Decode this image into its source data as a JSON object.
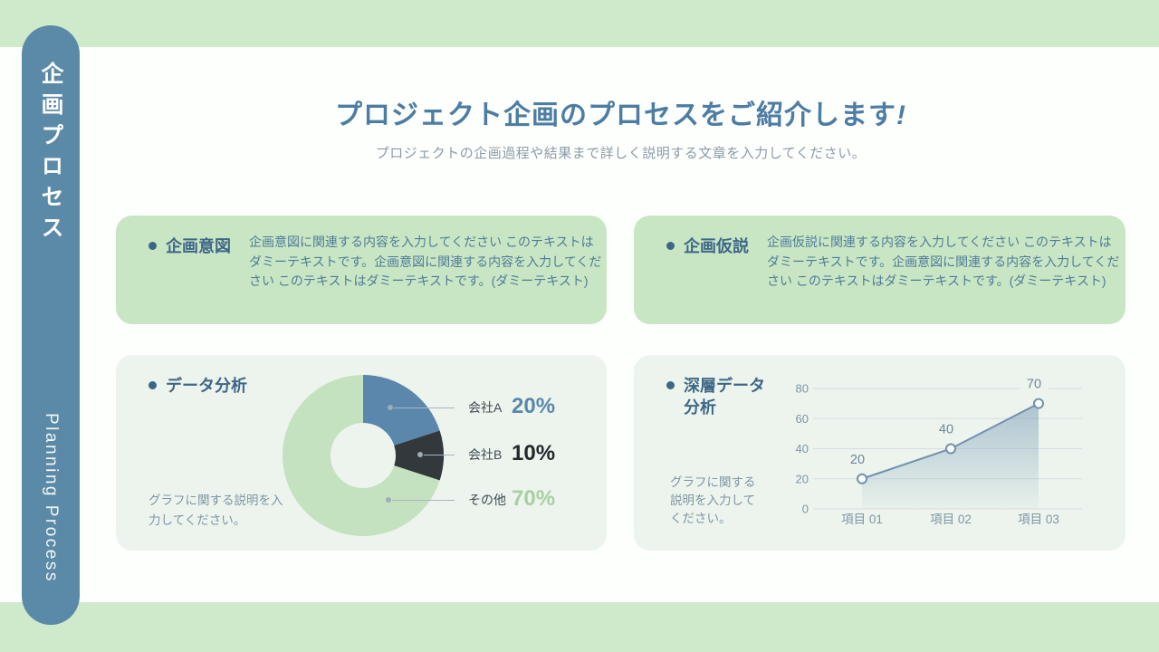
{
  "slide": {
    "title_main": "プロジェクト企画のプロセスをご紹介します",
    "title_exclamation": "!",
    "subtitle": "プロジェクトの企画過程や結果まで詳しく説明する文章を入力してください。"
  },
  "sidebar": {
    "vertical_title_jp": "企画プロセス",
    "vertical_title_en": "Planning Process"
  },
  "cards": {
    "intent": {
      "heading": "企画意図",
      "body": "企画意図に関連する内容を入力してください このテキストはダミーテキストです。企画意図に関連する内容を入力してください このテキストはダミーテキストです。(ダミーテキスト)"
    },
    "hypothesis": {
      "heading": "企画仮説",
      "body": "企画仮説に関連する内容を入力してください このテキストはダミーテキストです。企画意図に関連する内容を入力してください このテキストはダミーテキストです。(ダミーテキスト)"
    },
    "data_analysis": {
      "heading": "データ分析",
      "caption": "グラフに関する説明を入力してください。"
    },
    "deep_analysis": {
      "heading": "深層データ分析",
      "caption": "グラフに関する説明を入力してください。"
    }
  },
  "chart_data": [
    {
      "type": "pie",
      "subtype": "donut",
      "title": "データ分析",
      "slices": [
        {
          "label": "会社A",
          "value": 20,
          "display": "20%",
          "color": "#5a87ab",
          "value_color": "#5a87ab"
        },
        {
          "label": "会社B",
          "value": 10,
          "display": "10%",
          "color": "#33383c",
          "value_color": "#23282c"
        },
        {
          "label": "その他",
          "value": 70,
          "display": "70%",
          "color": "#c5e2c0",
          "value_color": "#a9cfa2"
        }
      ],
      "start_angle_deg": 0,
      "direction": "clockwise",
      "legend_position": "right"
    },
    {
      "type": "area",
      "title": "深層データ分析",
      "categories": [
        "項目 01",
        "項目 02",
        "項目 03"
      ],
      "values": [
        20,
        40,
        70
      ],
      "data_labels": [
        "20",
        "40",
        "70"
      ],
      "yticks": [
        0,
        20,
        40,
        60,
        80
      ],
      "ylim": [
        0,
        80
      ],
      "grid": true,
      "line_color": "#7191ae",
      "fill_color": "#7b9cb8",
      "marker": "open-circle",
      "axis_label_color": "#7f95a5",
      "data_label_color": "#6f8799"
    }
  ],
  "palette": {
    "band_green": "#cfe9cb",
    "sidebar_blue": "#5b8aa8",
    "title_blue": "#4d7da3",
    "heading_blue": "#3e6787",
    "body_blue": "#4f7b99",
    "caption_gray": "#7e94a4",
    "card_green": "#c9e6c4",
    "card_pale": "#ecf4ed"
  }
}
